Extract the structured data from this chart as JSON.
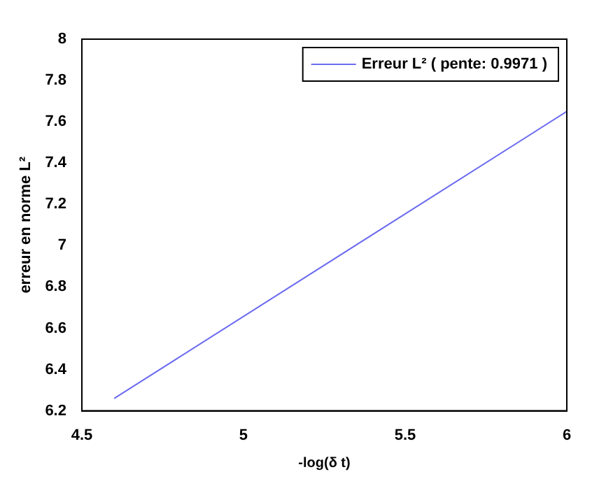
{
  "chart_data": {
    "type": "line",
    "xlabel": "-log(δ t)",
    "ylabel": "erreur en norme L²",
    "x": [
      4.6,
      6
    ],
    "series": [
      {
        "name": "Erreur L² ( pente: 0.9971 )",
        "color": "#6b6bf0",
        "values": [
          6.26,
          7.65
        ]
      }
    ],
    "xlim": [
      4.5,
      6
    ],
    "xticks": [
      4.5,
      5,
      5.5,
      6
    ],
    "ylim": [
      6.2,
      8
    ],
    "yticks": [
      6.2,
      6.4,
      6.6,
      6.8,
      7,
      7.2,
      7.4,
      7.6,
      7.8,
      8
    ],
    "grid": false,
    "legend": "top right",
    "marker": "none",
    "line_style": "solid"
  }
}
